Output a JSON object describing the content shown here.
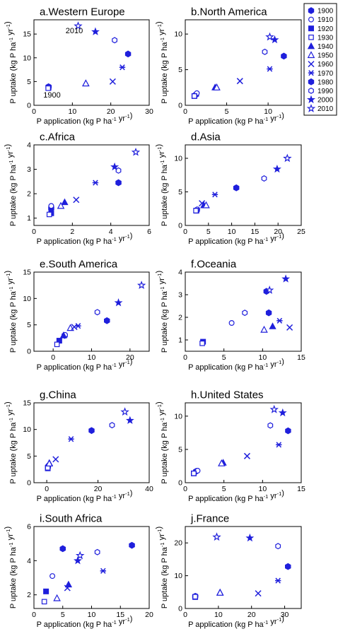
{
  "colors": {
    "marker": "#1f1fdc",
    "axis": "#000000",
    "background": "#ffffff"
  },
  "legend": {
    "entries": [
      {
        "label": "1900",
        "marker": "hexagon-filled"
      },
      {
        "label": "1910",
        "marker": "circle-open"
      },
      {
        "label": "1920",
        "marker": "square-filled"
      },
      {
        "label": "1930",
        "marker": "square-open"
      },
      {
        "label": "1940",
        "marker": "triangle-filled"
      },
      {
        "label": "1950",
        "marker": "triangle-open"
      },
      {
        "label": "1960",
        "marker": "cross"
      },
      {
        "label": "1970",
        "marker": "asterisk"
      },
      {
        "label": "1980",
        "marker": "hexagon-filled"
      },
      {
        "label": "1990",
        "marker": "hexagon-open"
      },
      {
        "label": "2000",
        "marker": "star-filled"
      },
      {
        "label": "2010",
        "marker": "star-open"
      }
    ]
  },
  "chart_data": [
    {
      "type": "scatter",
      "title": "a.Western Europe",
      "xlabel": "P application (kg P ha-1 yr-1)",
      "ylabel": "P uptake (kg P ha-1 yr-1)",
      "xlim": [
        0,
        30
      ],
      "ylim": [
        0,
        18
      ],
      "xticks": [
        0,
        10,
        20,
        30
      ],
      "yticks": [
        0,
        5,
        10,
        15
      ],
      "annotations": [
        {
          "text": "2010",
          "x": 10.5,
          "y": 15.2
        },
        {
          "text": "1900",
          "x": 4.7,
          "y": 1.6
        }
      ],
      "points": [
        {
          "year": "1900",
          "x": 3.8,
          "y": 3.9
        },
        {
          "year": "1910",
          "x": 3.9,
          "y": 3.9
        },
        {
          "year": "1920",
          "x": 3.8,
          "y": 3.7
        },
        {
          "year": "1930",
          "x": 3.7,
          "y": 3.6
        },
        {
          "year": "1940",
          "x": 13.5,
          "y": 4.6
        },
        {
          "year": "1950",
          "x": 13.5,
          "y": 4.6
        },
        {
          "year": "1960",
          "x": 20.5,
          "y": 5.0
        },
        {
          "year": "1970",
          "x": 23.0,
          "y": 8.0
        },
        {
          "year": "1980",
          "x": 24.5,
          "y": 10.8
        },
        {
          "year": "1990",
          "x": 21.0,
          "y": 13.7
        },
        {
          "year": "2000",
          "x": 16.0,
          "y": 15.5
        },
        {
          "year": "2010",
          "x": 11.5,
          "y": 16.7
        }
      ]
    },
    {
      "type": "scatter",
      "title": "b.North America",
      "xlabel": "P application (kg P ha-1 yr-1)",
      "ylabel": "P uptake (kg P ha-1 yr-1)",
      "xlim": [
        0,
        14
      ],
      "ylim": [
        0,
        12
      ],
      "xticks": [
        0,
        5,
        10
      ],
      "yticks": [
        0,
        5,
        10
      ],
      "points": [
        {
          "year": "1900",
          "x": 1.3,
          "y": 1.5
        },
        {
          "year": "1910",
          "x": 1.4,
          "y": 1.7
        },
        {
          "year": "1920",
          "x": 1.1,
          "y": 1.3
        },
        {
          "year": "1930",
          "x": 1.1,
          "y": 1.3
        },
        {
          "year": "1940",
          "x": 3.6,
          "y": 2.5
        },
        {
          "year": "1950",
          "x": 3.8,
          "y": 2.5
        },
        {
          "year": "1960",
          "x": 6.6,
          "y": 3.4
        },
        {
          "year": "1970",
          "x": 10.2,
          "y": 5.1
        },
        {
          "year": "1980",
          "x": 11.9,
          "y": 6.9
        },
        {
          "year": "1990",
          "x": 9.6,
          "y": 7.5
        },
        {
          "year": "2000",
          "x": 10.8,
          "y": 9.2
        },
        {
          "year": "2010",
          "x": 10.2,
          "y": 9.6
        }
      ]
    },
    {
      "type": "scatter",
      "title": "c.Africa",
      "xlabel": "P application (kg P ha-1 yr-1)",
      "ylabel": "P uptake (kg P ha-1 yr-1)",
      "xlim": [
        0,
        6
      ],
      "ylim": [
        0.7,
        4
      ],
      "xticks": [
        0,
        2,
        4,
        6
      ],
      "yticks": [
        1,
        2,
        3,
        4
      ],
      "points": [
        {
          "year": "1900",
          "x": 0.9,
          "y": 1.4
        },
        {
          "year": "1910",
          "x": 0.9,
          "y": 1.5
        },
        {
          "year": "1920",
          "x": 0.9,
          "y": 1.2
        },
        {
          "year": "1930",
          "x": 0.8,
          "y": 1.15
        },
        {
          "year": "1940",
          "x": 1.6,
          "y": 1.65
        },
        {
          "year": "1950",
          "x": 1.4,
          "y": 1.5
        },
        {
          "year": "1960",
          "x": 2.2,
          "y": 1.75
        },
        {
          "year": "1970",
          "x": 3.2,
          "y": 2.45
        },
        {
          "year": "1980",
          "x": 4.4,
          "y": 2.45
        },
        {
          "year": "1990",
          "x": 4.4,
          "y": 2.95
        },
        {
          "year": "2000",
          "x": 4.2,
          "y": 3.1
        },
        {
          "year": "2010",
          "x": 5.3,
          "y": 3.7
        }
      ]
    },
    {
      "type": "scatter",
      "title": "d.Asia",
      "xlabel": "P application (kg P ha-1 yr-1)",
      "ylabel": "P uptake (kg P ha-1 yr-1)",
      "xlim": [
        0,
        25
      ],
      "ylim": [
        0,
        12
      ],
      "xticks": [
        0,
        5,
        10,
        15,
        20,
        25
      ],
      "yticks": [
        0,
        5,
        10
      ],
      "points": [
        {
          "year": "1900",
          "x": 2.5,
          "y": 2.3
        },
        {
          "year": "1910",
          "x": 2.6,
          "y": 2.4
        },
        {
          "year": "1920",
          "x": 2.4,
          "y": 2.2
        },
        {
          "year": "1930",
          "x": 2.3,
          "y": 2.2
        },
        {
          "year": "1940",
          "x": 4.0,
          "y": 3.0
        },
        {
          "year": "1950",
          "x": 4.5,
          "y": 3.0
        },
        {
          "year": "1960",
          "x": 3.6,
          "y": 3.3
        },
        {
          "year": "1970",
          "x": 6.4,
          "y": 4.6
        },
        {
          "year": "1980",
          "x": 11.0,
          "y": 5.6
        },
        {
          "year": "1990",
          "x": 17.0,
          "y": 7.0
        },
        {
          "year": "2000",
          "x": 19.8,
          "y": 8.4
        },
        {
          "year": "2010",
          "x": 22.0,
          "y": 10.0
        }
      ]
    },
    {
      "type": "scatter",
      "title": "e.South America",
      "xlabel": "P application (kg P ha-1 yr-1)",
      "ylabel": "P uptake (kg P ha-1 yr-1)",
      "xlim": [
        -5,
        25
      ],
      "ylim": [
        0,
        15
      ],
      "xticks": [
        0,
        10,
        20
      ],
      "yticks": [
        0,
        5,
        10,
        15
      ],
      "points": [
        {
          "year": "1900",
          "x": 3.0,
          "y": 3.0
        },
        {
          "year": "1910",
          "x": 3.1,
          "y": 3.1
        },
        {
          "year": "1920",
          "x": 1.6,
          "y": 2.0
        },
        {
          "year": "1930",
          "x": 1.0,
          "y": 1.3
        },
        {
          "year": "1940",
          "x": 2.7,
          "y": 3.0
        },
        {
          "year": "1950",
          "x": 4.5,
          "y": 4.4
        },
        {
          "year": "1960",
          "x": 5.5,
          "y": 4.6
        },
        {
          "year": "1970",
          "x": 6.5,
          "y": 4.8
        },
        {
          "year": "1980",
          "x": 14.0,
          "y": 5.8
        },
        {
          "year": "1990",
          "x": 11.5,
          "y": 7.4
        },
        {
          "year": "2000",
          "x": 17.0,
          "y": 9.2
        },
        {
          "year": "2010",
          "x": 23.0,
          "y": 12.5
        }
      ]
    },
    {
      "type": "scatter",
      "title": "f.Oceania",
      "xlabel": "P application (kg P ha-1 yr-1)",
      "ylabel": "P uptake (kg P ha-1 yr-1)",
      "xlim": [
        0,
        15
      ],
      "ylim": [
        0.5,
        4
      ],
      "xticks": [
        0,
        5,
        10,
        15
      ],
      "yticks": [
        1,
        2,
        3,
        4
      ],
      "points": [
        {
          "year": "1900",
          "x": 10.5,
          "y": 3.15
        },
        {
          "year": "1910",
          "x": 6.0,
          "y": 1.75
        },
        {
          "year": "1920",
          "x": 2.3,
          "y": 0.92
        },
        {
          "year": "1930",
          "x": 2.2,
          "y": 0.85
        },
        {
          "year": "1940",
          "x": 11.3,
          "y": 1.6
        },
        {
          "year": "1950",
          "x": 10.2,
          "y": 1.45
        },
        {
          "year": "1960",
          "x": 13.5,
          "y": 1.55
        },
        {
          "year": "1970",
          "x": 12.2,
          "y": 1.85
        },
        {
          "year": "1980",
          "x": 10.8,
          "y": 2.2
        },
        {
          "year": "1990",
          "x": 7.7,
          "y": 2.2
        },
        {
          "year": "2000",
          "x": 13.0,
          "y": 3.7
        },
        {
          "year": "2010",
          "x": 10.9,
          "y": 3.2
        }
      ]
    },
    {
      "type": "scatter",
      "title": "g.China",
      "xlabel": "P application (kg P ha-1 yr-1)",
      "ylabel": "P uptake (kg P ha-1 yr-1)",
      "xlim": [
        -5,
        40
      ],
      "ylim": [
        0,
        15
      ],
      "xticks": [
        0,
        20,
        40
      ],
      "yticks": [
        0,
        5,
        10,
        15
      ],
      "points": [
        {
          "year": "1900",
          "x": 0.5,
          "y": 3.0
        },
        {
          "year": "1910",
          "x": 0.6,
          "y": 3.2
        },
        {
          "year": "1920",
          "x": 0.4,
          "y": 2.7
        },
        {
          "year": "1930",
          "x": 0.4,
          "y": 2.8
        },
        {
          "year": "1940",
          "x": 1.0,
          "y": 3.7
        },
        {
          "year": "1950",
          "x": 1.0,
          "y": 3.6
        },
        {
          "year": "1960",
          "x": 3.5,
          "y": 4.4
        },
        {
          "year": "1970",
          "x": 9.5,
          "y": 8.2
        },
        {
          "year": "1980",
          "x": 17.5,
          "y": 9.8
        },
        {
          "year": "1990",
          "x": 25.5,
          "y": 10.8
        },
        {
          "year": "2000",
          "x": 32.5,
          "y": 11.7
        },
        {
          "year": "2010",
          "x": 30.5,
          "y": 13.3
        }
      ]
    },
    {
      "type": "scatter",
      "title": "h.United States",
      "xlabel": "P application (kg P ha-1 yr-1)",
      "ylabel": "P uptake (kg P ha-1 yr-1)",
      "xlim": [
        0,
        15
      ],
      "ylim": [
        0,
        12
      ],
      "xticks": [
        0,
        5,
        10,
        15
      ],
      "yticks": [
        0,
        5,
        10
      ],
      "points": [
        {
          "year": "1900",
          "x": 1.4,
          "y": 1.7
        },
        {
          "year": "1910",
          "x": 1.6,
          "y": 1.8
        },
        {
          "year": "1920",
          "x": 1.1,
          "y": 1.4
        },
        {
          "year": "1930",
          "x": 1.1,
          "y": 1.4
        },
        {
          "year": "1940",
          "x": 4.9,
          "y": 3.0
        },
        {
          "year": "1950",
          "x": 4.7,
          "y": 2.9
        },
        {
          "year": "1960",
          "x": 8.0,
          "y": 4.0
        },
        {
          "year": "1970",
          "x": 12.1,
          "y": 5.7
        },
        {
          "year": "1980",
          "x": 13.3,
          "y": 7.8
        },
        {
          "year": "1990",
          "x": 11.0,
          "y": 8.6
        },
        {
          "year": "2000",
          "x": 12.6,
          "y": 10.5
        },
        {
          "year": "2010",
          "x": 11.5,
          "y": 11.0
        }
      ]
    },
    {
      "type": "scatter",
      "title": "i.South Africa",
      "xlabel": "P application (kg P ha-1 yr-1)",
      "ylabel": "P uptake (kg P ha-1 yr-1)",
      "xlim": [
        0,
        20
      ],
      "ylim": [
        1.2,
        6
      ],
      "xticks": [
        0,
        5,
        10,
        15,
        20
      ],
      "yticks": [
        2,
        4,
        6
      ],
      "points": [
        {
          "year": "1900",
          "x": 5.0,
          "y": 4.7
        },
        {
          "year": "1910",
          "x": 3.2,
          "y": 3.1
        },
        {
          "year": "1920",
          "x": 2.1,
          "y": 2.2
        },
        {
          "year": "1930",
          "x": 1.8,
          "y": 1.6
        },
        {
          "year": "1940",
          "x": 6.0,
          "y": 2.6
        },
        {
          "year": "1950",
          "x": 4.0,
          "y": 1.8
        },
        {
          "year": "1960",
          "x": 5.8,
          "y": 2.4
        },
        {
          "year": "1970",
          "x": 12.0,
          "y": 3.4
        },
        {
          "year": "1980",
          "x": 17.0,
          "y": 4.9
        },
        {
          "year": "1990",
          "x": 11.0,
          "y": 4.5
        },
        {
          "year": "2000",
          "x": 7.6,
          "y": 4.0
        },
        {
          "year": "2010",
          "x": 8.0,
          "y": 4.3
        }
      ]
    },
    {
      "type": "scatter",
      "title": "j.France",
      "xlabel": "P application (kg P ha-1 yr-1)",
      "ylabel": "P uptake (kg P ha-1 yr-1)",
      "xlim": [
        0,
        35
      ],
      "ylim": [
        0,
        25
      ],
      "xticks": [
        0,
        10,
        20,
        30
      ],
      "yticks": [
        0,
        10,
        20
      ],
      "points": [
        {
          "year": "1900",
          "x": 3.0,
          "y": 3.7
        },
        {
          "year": "1910",
          "x": 3.1,
          "y": 3.8
        },
        {
          "year": "1920",
          "x": 3.0,
          "y": 3.5
        },
        {
          "year": "1930",
          "x": 3.0,
          "y": 3.6
        },
        {
          "year": "1940",
          "x": 10.5,
          "y": 4.9
        },
        {
          "year": "1950",
          "x": 10.5,
          "y": 4.8
        },
        {
          "year": "1960",
          "x": 22.0,
          "y": 4.6
        },
        {
          "year": "1970",
          "x": 28.0,
          "y": 8.5
        },
        {
          "year": "1980",
          "x": 31.0,
          "y": 12.8
        },
        {
          "year": "1990",
          "x": 28.0,
          "y": 19.0
        },
        {
          "year": "2000",
          "x": 19.5,
          "y": 21.5
        },
        {
          "year": "2010",
          "x": 9.5,
          "y": 21.8
        }
      ]
    }
  ]
}
